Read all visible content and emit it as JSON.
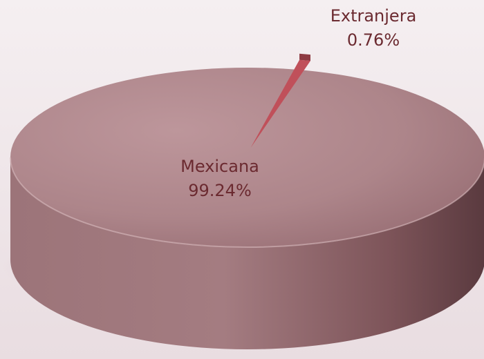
{
  "chart_data": {
    "type": "pie",
    "title": "",
    "categories": [
      "Mexicana",
      "Extranjera"
    ],
    "values": [
      99.24,
      0.76
    ],
    "unit": "%",
    "labels": [
      {
        "name": "Mexicana",
        "value_text": "99.24%"
      },
      {
        "name": "Extranjera",
        "value_text": "0.76%"
      }
    ],
    "colors": {
      "mexicana_top": "#b0868c",
      "mexicana_side": "#8a5f66",
      "extranjera": "#c0505a",
      "label_text": "#6b2a30"
    },
    "legend": "none",
    "style": "3d"
  }
}
